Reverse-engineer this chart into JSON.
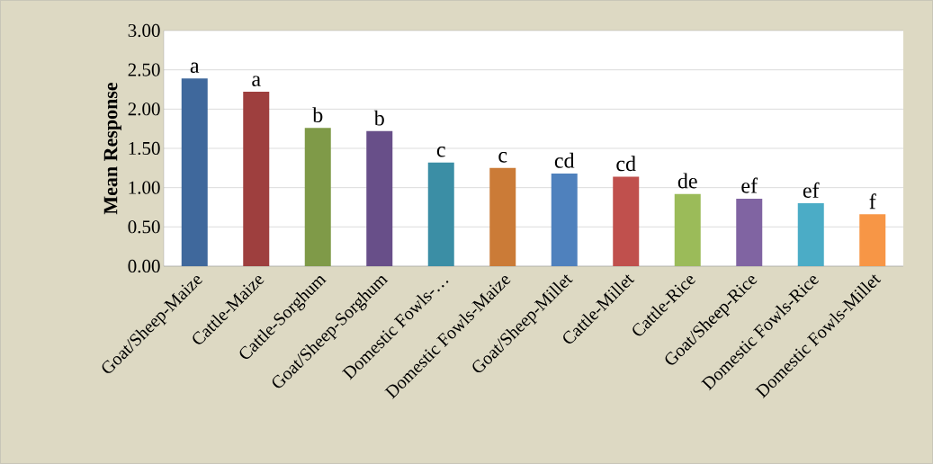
{
  "chart_data": {
    "type": "bar",
    "ylabel": "Mean Response",
    "categories": [
      "Goat/Sheep-Maize",
      "Cattle-Maize",
      "Cattle-Sorghum",
      "Goat/Sheep-Sorghum",
      "Domestic Fowls-…",
      "Domestic Fowls-Maize",
      "Goat/Sheep-Millet",
      "Cattle-Millet",
      "Cattle-Rice",
      "Goat/Sheep-Rice",
      "Domestic Fowls-Rice",
      "Domestic Fowls-Millet"
    ],
    "values": [
      2.39,
      2.22,
      1.76,
      1.72,
      1.32,
      1.25,
      1.18,
      1.14,
      0.92,
      0.86,
      0.8,
      0.66
    ],
    "colors": [
      "#3f689c",
      "#9e3f3e",
      "#7f9a48",
      "#684f89",
      "#3b8ea5",
      "#cb7b37",
      "#4f81bd",
      "#c0504d",
      "#9bbb59",
      "#8064a2",
      "#4bacc6",
      "#f79646"
    ],
    "ylim": [
      0,
      3
    ],
    "yticks": [
      {
        "value": 0,
        "label": "0.00"
      },
      {
        "value": 0.5,
        "label": "0.50"
      },
      {
        "value": 1,
        "label": "1.00"
      },
      {
        "value": 1.5,
        "label": "1.50"
      },
      {
        "value": 2,
        "label": "2.00"
      },
      {
        "value": 2.5,
        "label": "2.50"
      },
      {
        "value": 3,
        "label": "3.00"
      }
    ],
    "grid": "y",
    "annotations": [
      {
        "text": "a",
        "x": "Goat/Sheep-Maize",
        "y": 2.39
      },
      {
        "text": "a",
        "x": "Cattle-Maize",
        "y": 2.22
      },
      {
        "text": "b",
        "x": "Cattle-Sorghum",
        "y": 1.76
      },
      {
        "text": "b",
        "x": "Goat/Sheep-Sorghum",
        "y": 1.72
      },
      {
        "text": "c",
        "x": "Domestic Fowls-…",
        "y": 1.32
      },
      {
        "text": "c",
        "x": "Domestic Fowls-Maize",
        "y": 1.25
      },
      {
        "text": "cd",
        "x": "Goat/Sheep-Millet",
        "y": 1.18
      },
      {
        "text": "cd",
        "x": "Cattle-Millet",
        "y": 1.14
      },
      {
        "text": "de",
        "x": "Cattle-Rice",
        "y": 0.92
      },
      {
        "text": "ef",
        "x": "Goat/Sheep-Rice",
        "y": 0.86
      },
      {
        "text": "ef",
        "x": "Domestic Fowls-Rice",
        "y": 0.8
      },
      {
        "text": "f",
        "x": "Domestic Fowls-Millet",
        "y": 0.66
      }
    ]
  }
}
